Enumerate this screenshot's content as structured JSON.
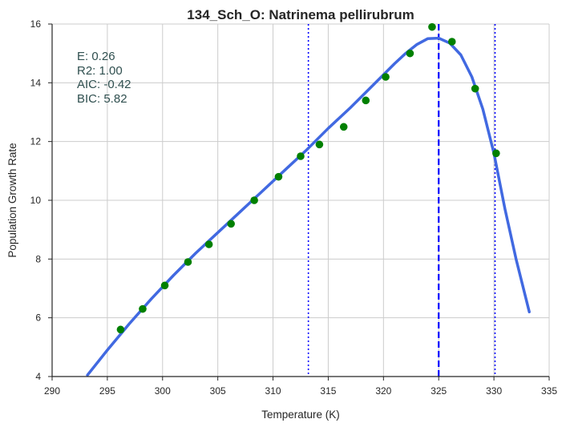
{
  "chart_data": {
    "type": "scatter",
    "title": "134_Sch_O: Natrinema pellirubrum",
    "xlabel": "Temperature (K)",
    "ylabel": "Population Growth Rate",
    "xlim": [
      290,
      335
    ],
    "ylim": [
      4,
      16
    ],
    "xticks": [
      290,
      295,
      300,
      305,
      310,
      315,
      320,
      325,
      330,
      335
    ],
    "yticks": [
      4,
      6,
      8,
      10,
      12,
      14,
      16
    ],
    "grid": true,
    "stats": [
      "E:  0.26",
      "R2:  1.00",
      "AIC: -0.42",
      "BIC: 5.82"
    ],
    "points": {
      "color": "#008000",
      "x": [
        296.2,
        298.2,
        300.2,
        302.3,
        304.2,
        306.2,
        308.3,
        310.5,
        312.5,
        314.2,
        316.4,
        318.4,
        320.2,
        322.4,
        324.4,
        326.2,
        328.3,
        330.2
      ],
      "y": [
        5.6,
        6.3,
        7.1,
        7.9,
        8.5,
        9.2,
        10.0,
        10.8,
        11.5,
        11.9,
        12.5,
        13.4,
        14.2,
        15.0,
        15.9,
        15.4,
        13.8,
        11.6
      ]
    },
    "fit": {
      "color": "#4169e1",
      "x": [
        293.2,
        295,
        297,
        299,
        301,
        303,
        305,
        307,
        309,
        311,
        313,
        315,
        317,
        319,
        321,
        322,
        323,
        324,
        325,
        326,
        327,
        328,
        329,
        330,
        331,
        332,
        333.2
      ],
      "y": [
        4.05,
        4.9,
        5.8,
        6.65,
        7.45,
        8.2,
        8.9,
        9.6,
        10.3,
        11.0,
        11.7,
        12.45,
        13.15,
        13.9,
        14.65,
        15.0,
        15.3,
        15.5,
        15.52,
        15.35,
        14.95,
        14.2,
        13.1,
        11.6,
        9.7,
        8.0,
        6.2
      ]
    },
    "vlines": [
      {
        "x": 325.0,
        "style": "dashed",
        "color": "#0000ff"
      },
      {
        "x": 313.2,
        "style": "dotted",
        "color": "#0000ff"
      },
      {
        "x": 330.1,
        "style": "dotted",
        "color": "#0000ff"
      }
    ]
  }
}
